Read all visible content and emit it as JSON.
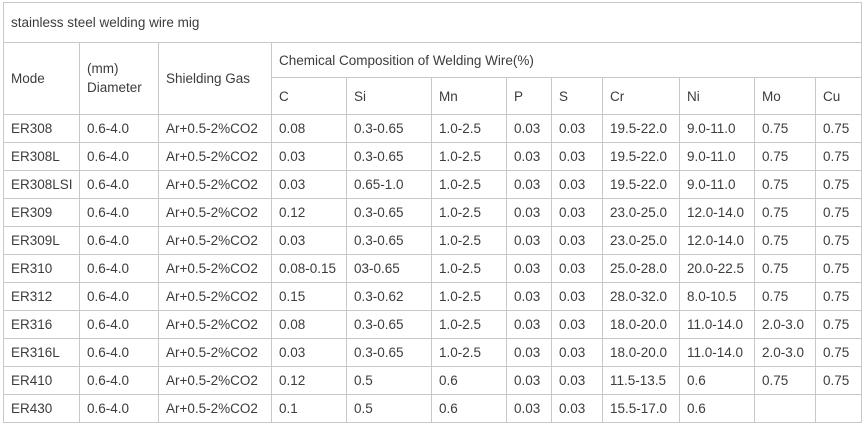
{
  "title": "stainless steel welding wire mig",
  "table": {
    "headers": {
      "mode": "Mode",
      "diameter_line1": "(mm)",
      "diameter_line2": "Diameter",
      "shielding_gas": "Shielding Gas",
      "composition": "Chemical Composition of Welding Wire(%)",
      "elements": [
        "C",
        "Si",
        "Mn",
        "P",
        "S",
        "Cr",
        "Ni",
        "Mo",
        "Cu"
      ]
    },
    "column_keys": [
      "mode",
      "diameter",
      "shielding-gas",
      "c",
      "si",
      "mn",
      "p",
      "s",
      "cr",
      "ni",
      "mo",
      "cu"
    ],
    "rows": [
      [
        "ER308",
        "0.6-4.0",
        "Ar+0.5-2%CO2",
        "0.08",
        "0.3-0.65",
        "1.0-2.5",
        "0.03",
        "0.03",
        "19.5-22.0",
        "9.0-11.0",
        "0.75",
        "0.75"
      ],
      [
        "ER308L",
        "0.6-4.0",
        "Ar+0.5-2%CO2",
        "0.03",
        "0.3-0.65",
        "1.0-2.5",
        "0.03",
        "0.03",
        "19.5-22.0",
        "9.0-11.0",
        "0.75",
        "0.75"
      ],
      [
        "ER308LSI",
        "0.6-4.0",
        "Ar+0.5-2%CO2",
        "0.03",
        "0.65-1.0",
        "1.0-2.5",
        "0.03",
        "0.03",
        "19.5-22.0",
        "9.0-11.0",
        "0.75",
        "0.75"
      ],
      [
        "ER309",
        "0.6-4.0",
        "Ar+0.5-2%CO2",
        "0.12",
        "0.3-0.65",
        "1.0-2.5",
        "0.03",
        "0.03",
        "23.0-25.0",
        "12.0-14.0",
        "0.75",
        "0.75"
      ],
      [
        "ER309L",
        "0.6-4.0",
        "Ar+0.5-2%CO2",
        "0.03",
        "0.3-0.65",
        "1.0-2.5",
        "0.03",
        "0.03",
        "23.0-25.0",
        "12.0-14.0",
        "0.75",
        "0.75"
      ],
      [
        "ER310",
        "0.6-4.0",
        "Ar+0.5-2%CO2",
        "0.08-0.15",
        "03-0.65",
        "1.0-2.5",
        "0.03",
        "0.03",
        "25.0-28.0",
        "20.0-22.5",
        "0.75",
        "0.75"
      ],
      [
        "ER312",
        "0.6-4.0",
        "Ar+0.5-2%CO2",
        "0.15",
        "0.3-0.62",
        "1.0-2.5",
        "0.03",
        "0.03",
        "28.0-32.0",
        "8.0-10.5",
        "0.75",
        "0.75"
      ],
      [
        "ER316",
        "0.6-4.0",
        "Ar+0.5-2%CO2",
        "0.08",
        "0.3-0.65",
        "1.0-2.5",
        "0.03",
        "0.03",
        "18.0-20.0",
        "11.0-14.0",
        "2.0-3.0",
        "0.75"
      ],
      [
        "ER316L",
        "0.6-4.0",
        "Ar+0.5-2%CO2",
        "0.03",
        "0.3-0.65",
        "1.0-2.5",
        "0.03",
        "0.03",
        "18.0-20.0",
        "11.0-14.0",
        "2.0-3.0",
        "0.75"
      ],
      [
        "ER410",
        "0.6-4.0",
        "Ar+0.5-2%CO2",
        "0.12",
        "0.5",
        "0.6",
        "0.03",
        "0.03",
        "11.5-13.5",
        "0.6",
        "0.75",
        "0.75"
      ],
      [
        "ER430",
        "0.6-4.0",
        "Ar+0.5-2%CO2",
        "0.1",
        "0.5",
        "0.6",
        "0.03",
        "0.03",
        "15.5-17.0",
        "0.6",
        "",
        ""
      ]
    ]
  },
  "colors": {
    "border": "#c8c8c8",
    "text": "#3c3c3c",
    "title_text": "#161616",
    "background": "#ffffff"
  }
}
